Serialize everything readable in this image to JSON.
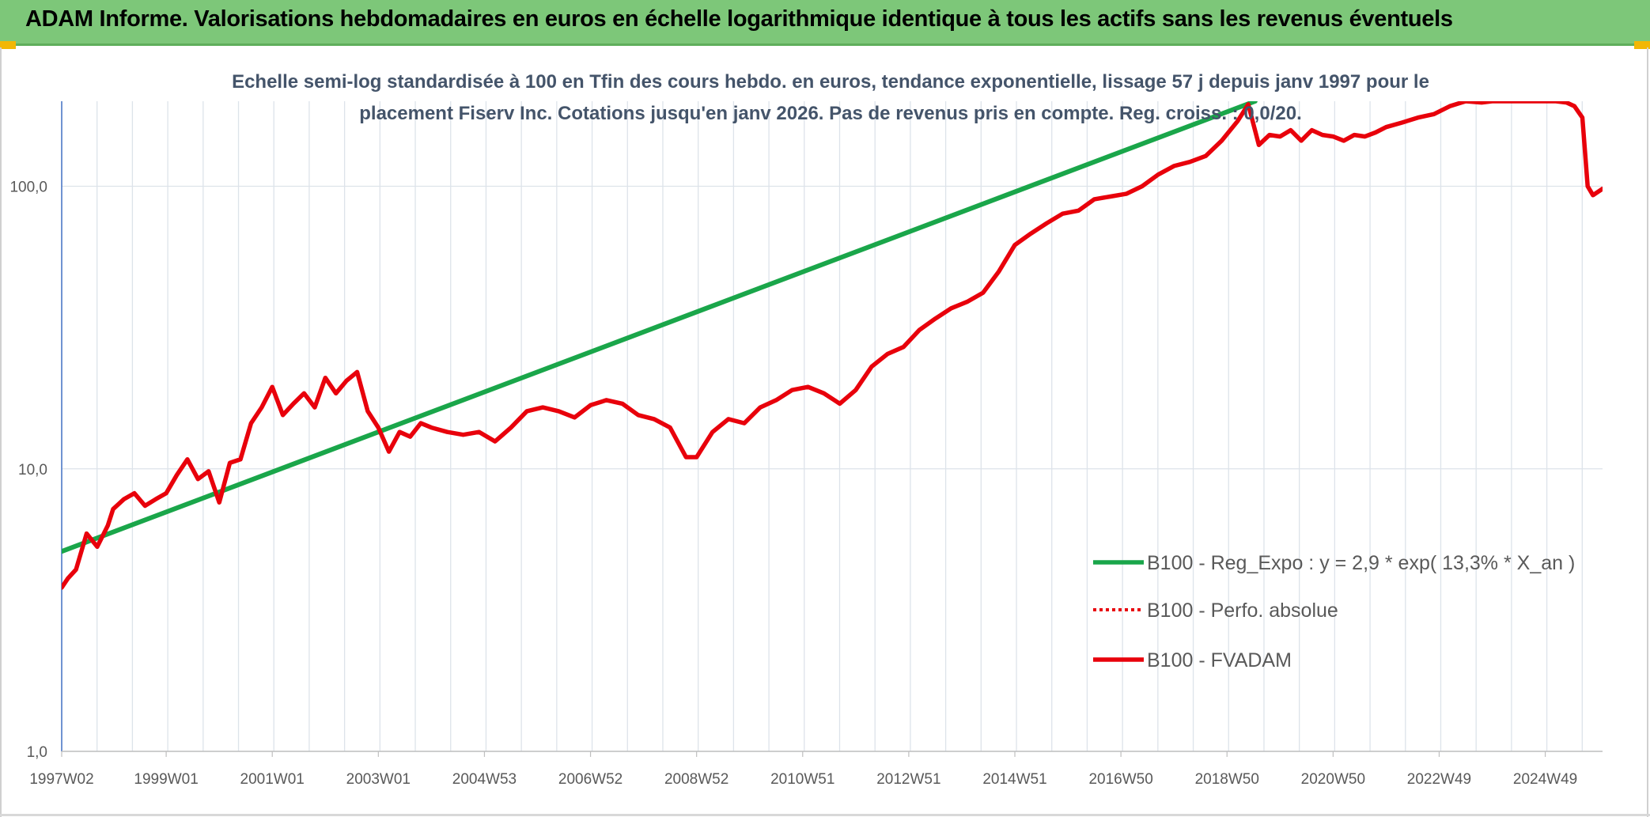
{
  "header": {
    "title": "ADAM Informe. Valorisations hebdomadaires en euros en échelle logarithmique identique à tous les actifs sans les revenus éventuels"
  },
  "colors": {
    "banner": "#7dc779",
    "accent_corner": "#f2b705",
    "trend": "#1aa64a",
    "series": "#e8000b",
    "grid": "#dde3ea",
    "title_text": "#44546a",
    "axis_text": "#595959"
  },
  "chart_data": {
    "type": "line",
    "title_lines": [
      "Echelle semi-log standardisée à 100 en Tfin des cours hebdo. en euros, tendance exponentielle, lissage 57 j depuis janv 1997 pour le",
      "placement Fiserv Inc. Cotations jusqu'en janv 2026. Pas de revenus pris en compte. Reg. croiss. : 0,0/20."
    ],
    "y_scale": "log",
    "ylim": [
      1,
      200
    ],
    "xlim": [
      1997.03,
      2026.08
    ],
    "y_ticks": [
      {
        "value": 1,
        "label": "1,0"
      },
      {
        "value": 10,
        "label": "10,0"
      },
      {
        "value": 100,
        "label": "100,0"
      }
    ],
    "x_ticks": [
      {
        "value": 1997.03,
        "label": "1997W02"
      },
      {
        "value": 1999.0,
        "label": "1999W01"
      },
      {
        "value": 2001.0,
        "label": "2001W01"
      },
      {
        "value": 2003.0,
        "label": "2003W01"
      },
      {
        "value": 2005.0,
        "label": "2004W53"
      },
      {
        "value": 2007.0,
        "label": "2006W52"
      },
      {
        "value": 2009.0,
        "label": "2008W52"
      },
      {
        "value": 2011.0,
        "label": "2010W51"
      },
      {
        "value": 2013.0,
        "label": "2012W51"
      },
      {
        "value": 2015.0,
        "label": "2014W51"
      },
      {
        "value": 2017.0,
        "label": "2016W50"
      },
      {
        "value": 2019.0,
        "label": "2018W50"
      },
      {
        "value": 2021.0,
        "label": "2020W50"
      },
      {
        "value": 2023.0,
        "label": "2022W49"
      },
      {
        "value": 2025.0,
        "label": "2024W49"
      }
    ],
    "legend_position": "bottom-right",
    "legend": [
      {
        "label": "B100 - Reg_Expo : y = 2,9 * exp( 13,3% *  X_an )",
        "style": "solid-green"
      },
      {
        "label": "B100 - Perfo. absolue",
        "style": "dotted-red"
      },
      {
        "label": "B100 - FVADAM",
        "style": "solid-red"
      }
    ],
    "series": [
      {
        "name": "B100 - Reg_Expo : y = 2,9 * exp( 13,3% *  X_an )",
        "kind": "trend",
        "x": [
          1997.03,
          2019.53
        ],
        "y": [
          5.1,
          200
        ]
      },
      {
        "name": "B100 - FVADAM",
        "kind": "price",
        "x": [
          1997.03,
          1997.15,
          1997.3,
          1997.5,
          1997.7,
          1997.9,
          1998.0,
          1998.2,
          1998.4,
          1998.6,
          1998.8,
          1999.0,
          1999.2,
          1999.4,
          1999.6,
          1999.8,
          2000.0,
          2000.2,
          2000.4,
          2000.6,
          2000.8,
          2001.0,
          2001.2,
          2001.4,
          2001.6,
          2001.8,
          2002.0,
          2002.2,
          2002.4,
          2002.6,
          2002.8,
          2003.0,
          2003.2,
          2003.4,
          2003.6,
          2003.8,
          2004.0,
          2004.3,
          2004.6,
          2004.9,
          2005.2,
          2005.5,
          2005.8,
          2006.1,
          2006.4,
          2006.7,
          2007.0,
          2007.3,
          2007.6,
          2007.9,
          2008.2,
          2008.5,
          2008.8,
          2009.0,
          2009.3,
          2009.6,
          2009.9,
          2010.2,
          2010.5,
          2010.8,
          2011.1,
          2011.4,
          2011.7,
          2012.0,
          2012.3,
          2012.6,
          2012.9,
          2013.2,
          2013.5,
          2013.8,
          2014.1,
          2014.4,
          2014.7,
          2015.0,
          2015.3,
          2015.6,
          2015.9,
          2016.2,
          2016.5,
          2016.8,
          2017.1,
          2017.4,
          2017.7,
          2018.0,
          2018.3,
          2018.6,
          2018.9,
          2019.2,
          2019.4,
          2019.6,
          2019.8,
          2020.0,
          2020.2,
          2020.4,
          2020.6,
          2020.8,
          2021.0,
          2021.2,
          2021.4,
          2021.6,
          2021.8,
          2022.0,
          2022.3,
          2022.6,
          2022.9,
          2023.2,
          2023.5,
          2023.8,
          2024.0,
          2024.2,
          2024.4,
          2024.6,
          2024.8,
          2025.0,
          2025.2,
          2025.4,
          2025.55,
          2025.7,
          2025.8,
          2025.9,
          2026.08
        ],
        "y": [
          3.8,
          4.1,
          4.4,
          5.9,
          5.3,
          6.3,
          7.2,
          7.8,
          8.2,
          7.4,
          7.8,
          8.2,
          9.5,
          10.8,
          9.2,
          9.8,
          7.6,
          10.5,
          10.8,
          14.5,
          16.5,
          19.5,
          15.5,
          17.0,
          18.5,
          16.5,
          21.0,
          18.5,
          20.5,
          22.0,
          16.0,
          14.0,
          11.5,
          13.5,
          13.0,
          14.5,
          14.0,
          13.5,
          13.2,
          13.5,
          12.5,
          14.0,
          16.0,
          16.5,
          16.0,
          15.2,
          16.8,
          17.5,
          17.0,
          15.5,
          15.0,
          14.0,
          11.0,
          11.0,
          13.5,
          15.0,
          14.5,
          16.5,
          17.5,
          19.0,
          19.5,
          18.5,
          17.0,
          19.0,
          23.0,
          25.5,
          27.0,
          31.0,
          34.0,
          37.0,
          39.0,
          42.0,
          50.0,
          62.0,
          68.0,
          74.0,
          80.0,
          82.0,
          90.0,
          92.0,
          94.0,
          100.0,
          110.0,
          118.0,
          122.0,
          128.0,
          145.0,
          170.0,
          195.0,
          140.0,
          152.0,
          150.0,
          158.0,
          145.0,
          158.0,
          152.0,
          150.0,
          145.0,
          152.0,
          150.0,
          155.0,
          162.0,
          168.0,
          175.0,
          180.0,
          192.0,
          200.0,
          198.0,
          200.0,
          200.0,
          200.0,
          200.0,
          200.0,
          200.0,
          200.0,
          198.0,
          192.0,
          175.0,
          100.0,
          93.0,
          98.0
        ]
      }
    ]
  }
}
